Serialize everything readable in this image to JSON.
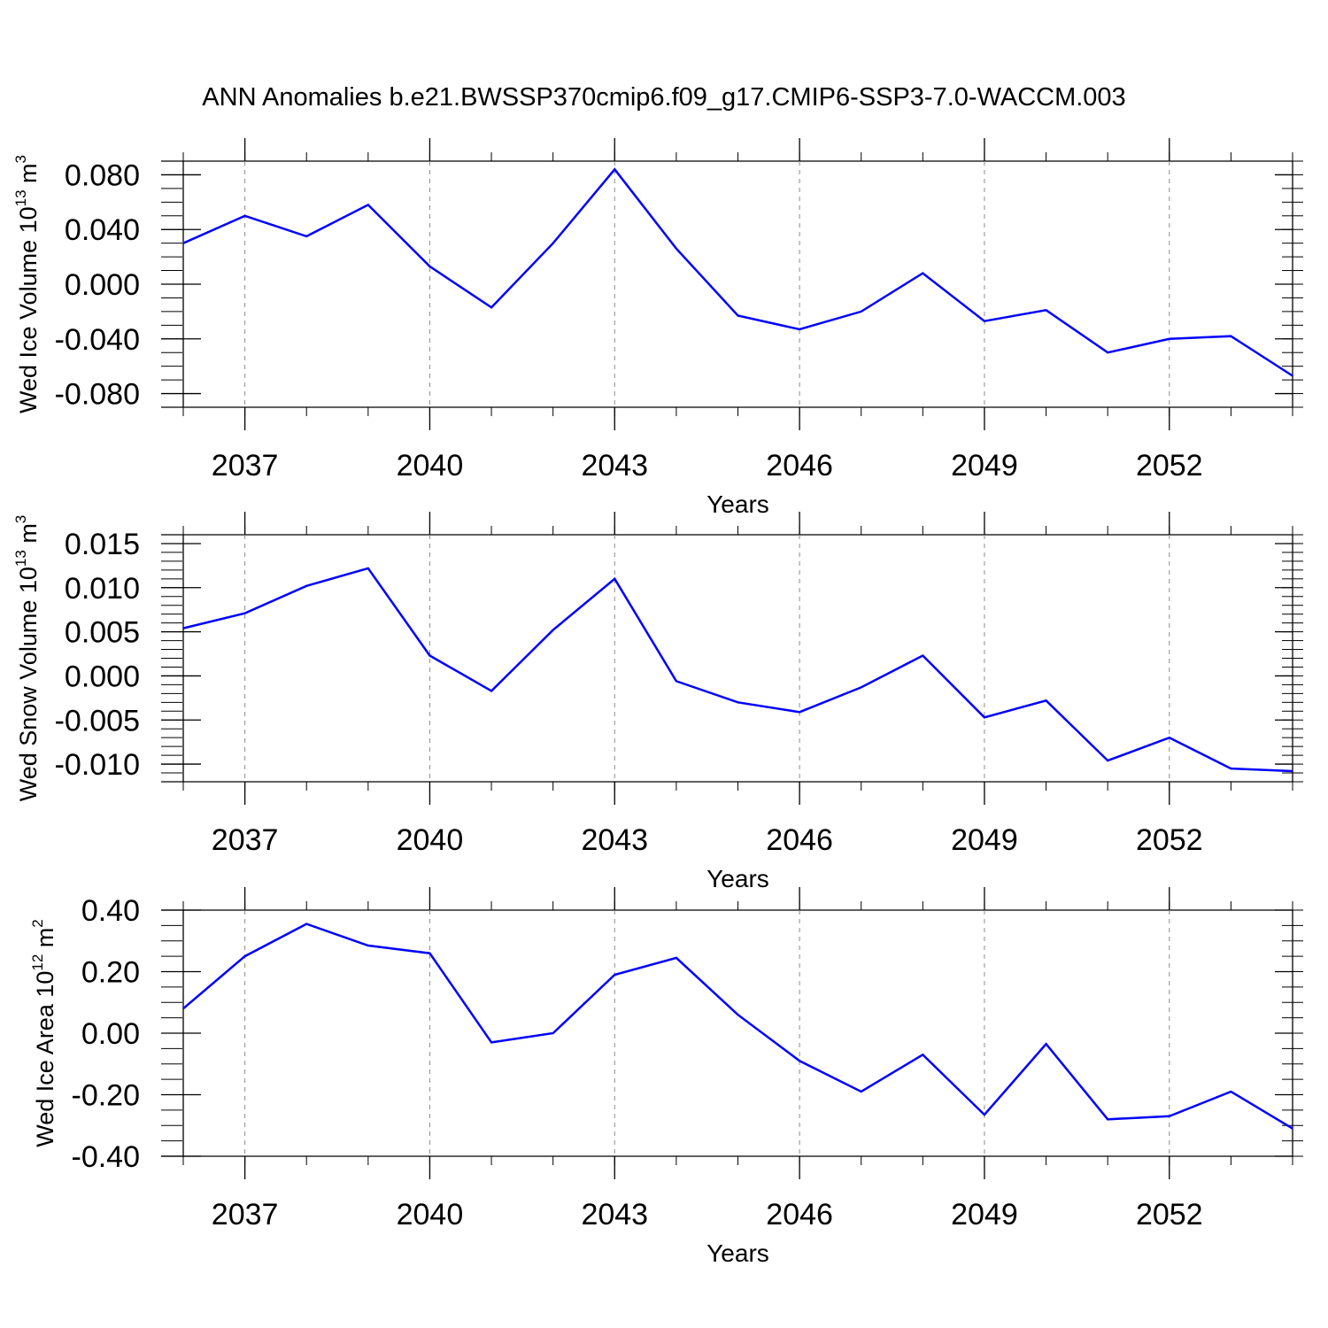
{
  "title": "ANN Anomalies b.e21.BWSSP370cmip6.f09_g17.CMIP6-SSP3-7.0-WACCM.003",
  "colors": {
    "series": "#0000ff",
    "axis": "#000000",
    "grid": "#8c8c8c",
    "background": "#ffffff"
  },
  "chart_data": [
    {
      "type": "line",
      "ylabel": "Wed Ice Volume 10",
      "ylabel_exp": "13",
      "ylabel_unit": " m",
      "ylabel_unit_exp": "3",
      "xlabel": "Years",
      "xlim": [
        2036,
        2054
      ],
      "ylim": [
        -0.09,
        0.09
      ],
      "x_ticks": [
        2037,
        2040,
        2043,
        2046,
        2049,
        2052
      ],
      "x_tick_labels": [
        "2037",
        "2040",
        "2043",
        "2046",
        "2049",
        "2052"
      ],
      "y_ticks": [
        0.08,
        0.04,
        0.0,
        -0.04,
        -0.08
      ],
      "y_tick_labels": [
        "0.080",
        "0.040",
        "0.000",
        "-0.040",
        "-0.080"
      ],
      "y_minor_step": 0.01,
      "grid": "vertical-dashed",
      "x": [
        2036,
        2037,
        2038,
        2039,
        2040,
        2041,
        2042,
        2043,
        2044,
        2045,
        2046,
        2047,
        2048,
        2049,
        2050,
        2051,
        2052,
        2053,
        2054
      ],
      "series": [
        {
          "values": [
            0.03,
            0.05,
            0.035,
            0.058,
            0.013,
            -0.017,
            0.03,
            0.084,
            0.026,
            -0.023,
            -0.033,
            -0.02,
            0.008,
            -0.027,
            -0.019,
            -0.05,
            -0.04,
            -0.038,
            -0.067
          ]
        }
      ]
    },
    {
      "type": "line",
      "ylabel": "Wed Snow Volume 10",
      "ylabel_exp": "13",
      "ylabel_unit": " m",
      "ylabel_unit_exp": "3",
      "xlabel": "Years",
      "xlim": [
        2036,
        2054
      ],
      "ylim": [
        -0.012,
        0.016
      ],
      "x_ticks": [
        2037,
        2040,
        2043,
        2046,
        2049,
        2052
      ],
      "x_tick_labels": [
        "2037",
        "2040",
        "2043",
        "2046",
        "2049",
        "2052"
      ],
      "y_ticks": [
        0.015,
        0.01,
        0.005,
        0.0,
        -0.005,
        -0.01
      ],
      "y_tick_labels": [
        "0.015",
        "0.010",
        "0.005",
        "0.000",
        "-0.005",
        "-0.010"
      ],
      "y_minor_step": 0.001,
      "grid": "vertical-dashed",
      "x": [
        2036,
        2037,
        2038,
        2039,
        2040,
        2041,
        2042,
        2043,
        2044,
        2045,
        2046,
        2047,
        2048,
        2049,
        2050,
        2051,
        2052,
        2053,
        2054
      ],
      "series": [
        {
          "values": [
            0.0054,
            0.0071,
            0.0102,
            0.0122,
            0.0023,
            -0.0017,
            0.0052,
            0.011,
            -0.0006,
            -0.003,
            -0.0041,
            -0.0013,
            0.0023,
            -0.0047,
            -0.0028,
            -0.0096,
            -0.007,
            -0.0105,
            -0.0108
          ]
        }
      ]
    },
    {
      "type": "line",
      "ylabel": "Wed Ice Area 10",
      "ylabel_exp": "12",
      "ylabel_unit": " m",
      "ylabel_unit_exp": "2",
      "xlabel": "Years",
      "xlim": [
        2036,
        2054
      ],
      "ylim": [
        -0.4,
        0.4
      ],
      "x_ticks": [
        2037,
        2040,
        2043,
        2046,
        2049,
        2052
      ],
      "x_tick_labels": [
        "2037",
        "2040",
        "2043",
        "2046",
        "2049",
        "2052"
      ],
      "y_ticks": [
        0.4,
        0.2,
        0.0,
        -0.2,
        -0.4
      ],
      "y_tick_labels": [
        "0.40",
        "0.20",
        "0.00",
        "-0.20",
        "-0.40"
      ],
      "y_minor_step": 0.05,
      "grid": "vertical-dashed",
      "x": [
        2036,
        2037,
        2038,
        2039,
        2040,
        2041,
        2042,
        2043,
        2044,
        2045,
        2046,
        2047,
        2048,
        2049,
        2050,
        2051,
        2052,
        2053,
        2054
      ],
      "series": [
        {
          "values": [
            0.08,
            0.25,
            0.355,
            0.285,
            0.26,
            -0.03,
            0.0,
            0.19,
            0.245,
            0.06,
            -0.09,
            -0.19,
            -0.07,
            -0.265,
            -0.035,
            -0.28,
            -0.27,
            -0.19,
            -0.31
          ]
        }
      ]
    }
  ]
}
